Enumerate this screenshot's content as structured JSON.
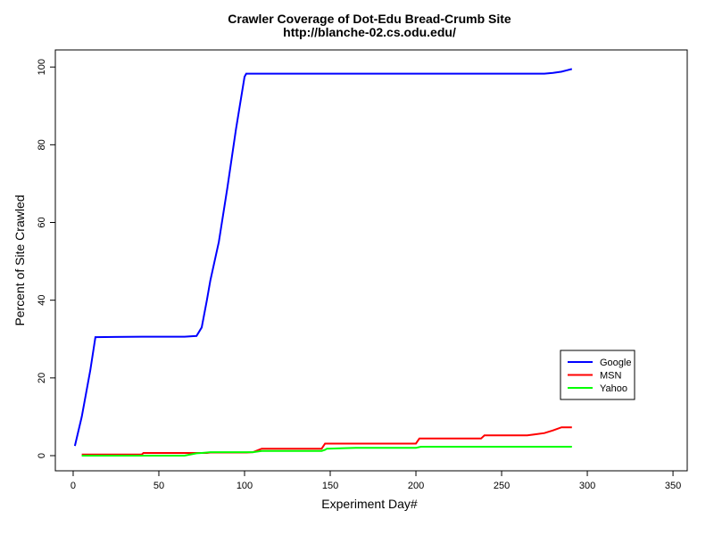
{
  "chart_data": {
    "type": "line",
    "title": "Crawler Coverage of Dot-Edu Bread-Crumb Site",
    "subtitle": "http://blanche-02.cs.odu.edu/",
    "x_label": "Experiment Day#",
    "y_label": "Percent of Site Crawled",
    "x": [
      1,
      5,
      10,
      13,
      40,
      41,
      65,
      72,
      75,
      78,
      80,
      85,
      90,
      95,
      100,
      101,
      105,
      110,
      145,
      147,
      148,
      165,
      200,
      202,
      203,
      238,
      240,
      265,
      270,
      275,
      280,
      285,
      291
    ],
    "series": [
      {
        "name": "Google",
        "color": "#0000ff",
        "values": [
          2.5,
          10,
          22,
          30.5,
          30.6,
          30.6,
          30.6,
          30.8,
          33,
          40,
          45,
          55,
          69,
          84,
          97.5,
          98.3,
          98.3,
          98.3,
          98.3,
          98.3,
          98.3,
          98.3,
          98.3,
          98.3,
          98.3,
          98.3,
          98.3,
          98.3,
          98.3,
          98.3,
          98.5,
          98.8,
          99.5
        ]
      },
      {
        "name": "MSN",
        "color": "#ff0000",
        "values": [
          null,
          0.3,
          0.3,
          0.3,
          0.3,
          0.7,
          0.7,
          0.7,
          0.7,
          0.7,
          0.8,
          0.8,
          0.8,
          0.8,
          0.8,
          0.8,
          0.9,
          1.8,
          1.8,
          3.1,
          3.1,
          3.1,
          3.1,
          4.4,
          4.4,
          4.4,
          5.2,
          5.2,
          5.5,
          5.8,
          6.5,
          7.3,
          7.3
        ]
      },
      {
        "name": "Yahoo",
        "color": "#00ff00",
        "values": [
          null,
          0,
          0,
          0,
          0,
          0,
          0,
          0.6,
          0.7,
          0.8,
          0.9,
          0.9,
          0.9,
          0.9,
          0.9,
          0.9,
          0.9,
          1.2,
          1.2,
          1.5,
          1.8,
          2.0,
          2.0,
          2.2,
          2.3,
          2.3,
          2.3,
          2.3,
          2.3,
          2.3,
          2.3,
          2.3,
          2.3
        ]
      }
    ],
    "xlim": [
      -10.4,
      358.3
    ],
    "ylim": [
      -3.9,
      104.4
    ],
    "xticks": [
      0,
      50,
      100,
      150,
      200,
      250,
      300,
      350
    ],
    "yticks": [
      0,
      20,
      40,
      60,
      80,
      100
    ],
    "legend": "right"
  }
}
